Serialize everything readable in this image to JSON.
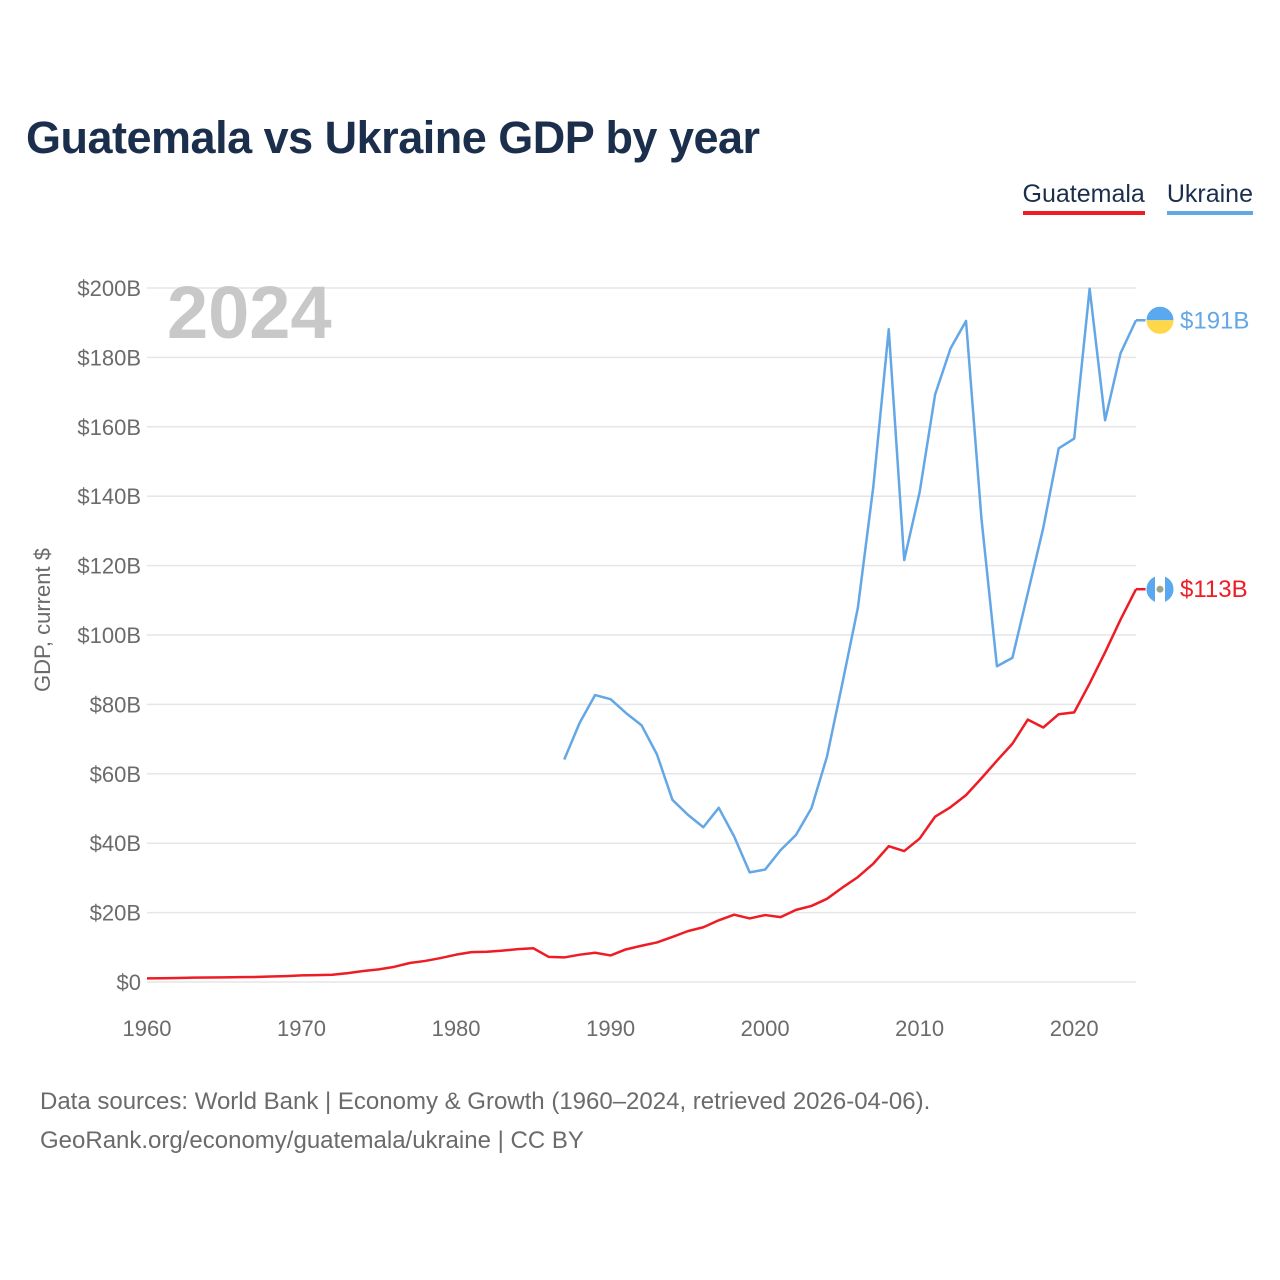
{
  "chart_data": {
    "type": "line",
    "title": "Guatemala vs Ukraine GDP by year",
    "ylabel": "GDP, current $",
    "xlabel": "",
    "year_label": "2024",
    "xlim": [
      1960,
      2024
    ],
    "ylim": [
      0,
      200
    ],
    "y_unit": "billion USD",
    "grid": true,
    "legend_position": "top-right",
    "y_ticks": [
      {
        "value": 0,
        "label": "$0"
      },
      {
        "value": 20,
        "label": "$20B"
      },
      {
        "value": 40,
        "label": "$40B"
      },
      {
        "value": 60,
        "label": "$60B"
      },
      {
        "value": 80,
        "label": "$80B"
      },
      {
        "value": 100,
        "label": "$100B"
      },
      {
        "value": 120,
        "label": "$120B"
      },
      {
        "value": 140,
        "label": "$140B"
      },
      {
        "value": 160,
        "label": "$160B"
      },
      {
        "value": 180,
        "label": "$180B"
      },
      {
        "value": 200,
        "label": "$200B"
      }
    ],
    "x_ticks": [
      {
        "value": 1960,
        "label": "1960"
      },
      {
        "value": 1970,
        "label": "1970"
      },
      {
        "value": 1980,
        "label": "1980"
      },
      {
        "value": 1990,
        "label": "1990"
      },
      {
        "value": 2000,
        "label": "2000"
      },
      {
        "value": 2010,
        "label": "2010"
      },
      {
        "value": 2020,
        "label": "2020"
      }
    ],
    "series": [
      {
        "name": "Guatemala",
        "color": "#ee1c24",
        "end_label": "$113B",
        "flag_icon": "guatemala-flag-icon",
        "points": [
          [
            1960,
            1.04
          ],
          [
            1961,
            1.08
          ],
          [
            1962,
            1.15
          ],
          [
            1963,
            1.26
          ],
          [
            1964,
            1.3
          ],
          [
            1965,
            1.33
          ],
          [
            1966,
            1.39
          ],
          [
            1967,
            1.45
          ],
          [
            1968,
            1.6
          ],
          [
            1969,
            1.71
          ],
          [
            1970,
            1.9
          ],
          [
            1971,
            1.98
          ],
          [
            1972,
            2.1
          ],
          [
            1973,
            2.57
          ],
          [
            1974,
            3.16
          ],
          [
            1975,
            3.65
          ],
          [
            1976,
            4.37
          ],
          [
            1977,
            5.48
          ],
          [
            1978,
            6.07
          ],
          [
            1979,
            6.9
          ],
          [
            1980,
            7.88
          ],
          [
            1981,
            8.61
          ],
          [
            1982,
            8.72
          ],
          [
            1983,
            9.05
          ],
          [
            1984,
            9.47
          ],
          [
            1985,
            9.72
          ],
          [
            1986,
            7.23
          ],
          [
            1987,
            7.08
          ],
          [
            1988,
            7.87
          ],
          [
            1989,
            8.42
          ],
          [
            1990,
            7.65
          ],
          [
            1991,
            9.41
          ],
          [
            1992,
            10.44
          ],
          [
            1993,
            11.4
          ],
          [
            1994,
            12.98
          ],
          [
            1995,
            14.66
          ],
          [
            1996,
            15.78
          ],
          [
            1997,
            17.79
          ],
          [
            1998,
            19.4
          ],
          [
            1999,
            18.32
          ],
          [
            2000,
            19.29
          ],
          [
            2001,
            18.7
          ],
          [
            2002,
            20.78
          ],
          [
            2003,
            21.92
          ],
          [
            2004,
            23.97
          ],
          [
            2005,
            27.21
          ],
          [
            2006,
            30.23
          ],
          [
            2007,
            34.11
          ],
          [
            2008,
            39.14
          ],
          [
            2009,
            37.73
          ],
          [
            2010,
            41.34
          ],
          [
            2011,
            47.65
          ],
          [
            2012,
            50.39
          ],
          [
            2013,
            53.85
          ],
          [
            2014,
            58.72
          ],
          [
            2015,
            63.77
          ],
          [
            2016,
            68.66
          ],
          [
            2017,
            75.62
          ],
          [
            2018,
            73.34
          ],
          [
            2019,
            77.17
          ],
          [
            2020,
            77.7
          ],
          [
            2021,
            86.05
          ],
          [
            2022,
            95.0
          ],
          [
            2023,
            104.45
          ],
          [
            2024,
            113.2
          ]
        ]
      },
      {
        "name": "Ukraine",
        "color": "#63a7e6",
        "end_label": "$191B",
        "flag_icon": "ukraine-flag-icon",
        "points": [
          [
            1987,
            64.1
          ],
          [
            1988,
            74.7
          ],
          [
            1989,
            82.7
          ],
          [
            1990,
            81.5
          ],
          [
            1991,
            77.5
          ],
          [
            1992,
            74.0
          ],
          [
            1993,
            65.6
          ],
          [
            1994,
            52.5
          ],
          [
            1995,
            48.2
          ],
          [
            1996,
            44.6
          ],
          [
            1997,
            50.2
          ],
          [
            1998,
            41.9
          ],
          [
            1999,
            31.6
          ],
          [
            2000,
            32.4
          ],
          [
            2001,
            38.0
          ],
          [
            2002,
            42.4
          ],
          [
            2003,
            50.1
          ],
          [
            2004,
            64.9
          ],
          [
            2005,
            86.1
          ],
          [
            2006,
            107.8
          ],
          [
            2007,
            142.7
          ],
          [
            2008,
            188.1
          ],
          [
            2009,
            121.6
          ],
          [
            2010,
            141.2
          ],
          [
            2011,
            169.3
          ],
          [
            2012,
            182.6
          ],
          [
            2013,
            190.5
          ],
          [
            2014,
            133.5
          ],
          [
            2015,
            91.0
          ],
          [
            2016,
            93.4
          ],
          [
            2017,
            112.1
          ],
          [
            2018,
            130.9
          ],
          [
            2019,
            153.8
          ],
          [
            2020,
            156.6
          ],
          [
            2021,
            199.8
          ],
          [
            2022,
            161.9
          ],
          [
            2023,
            181.2
          ],
          [
            2024,
            190.7
          ]
        ]
      }
    ]
  },
  "footer": {
    "line1": "Data sources: World Bank | Economy & Growth (1960–2024, retrieved 2026-04-06).",
    "line2": "GeoRank.org/economy/guatemala/ukraine | CC BY"
  },
  "colors": {
    "title": "#1b2f4d",
    "grid": "#e6e6e6",
    "tick_text": "#6b6b6b",
    "watermark": "#c8c8c8"
  }
}
